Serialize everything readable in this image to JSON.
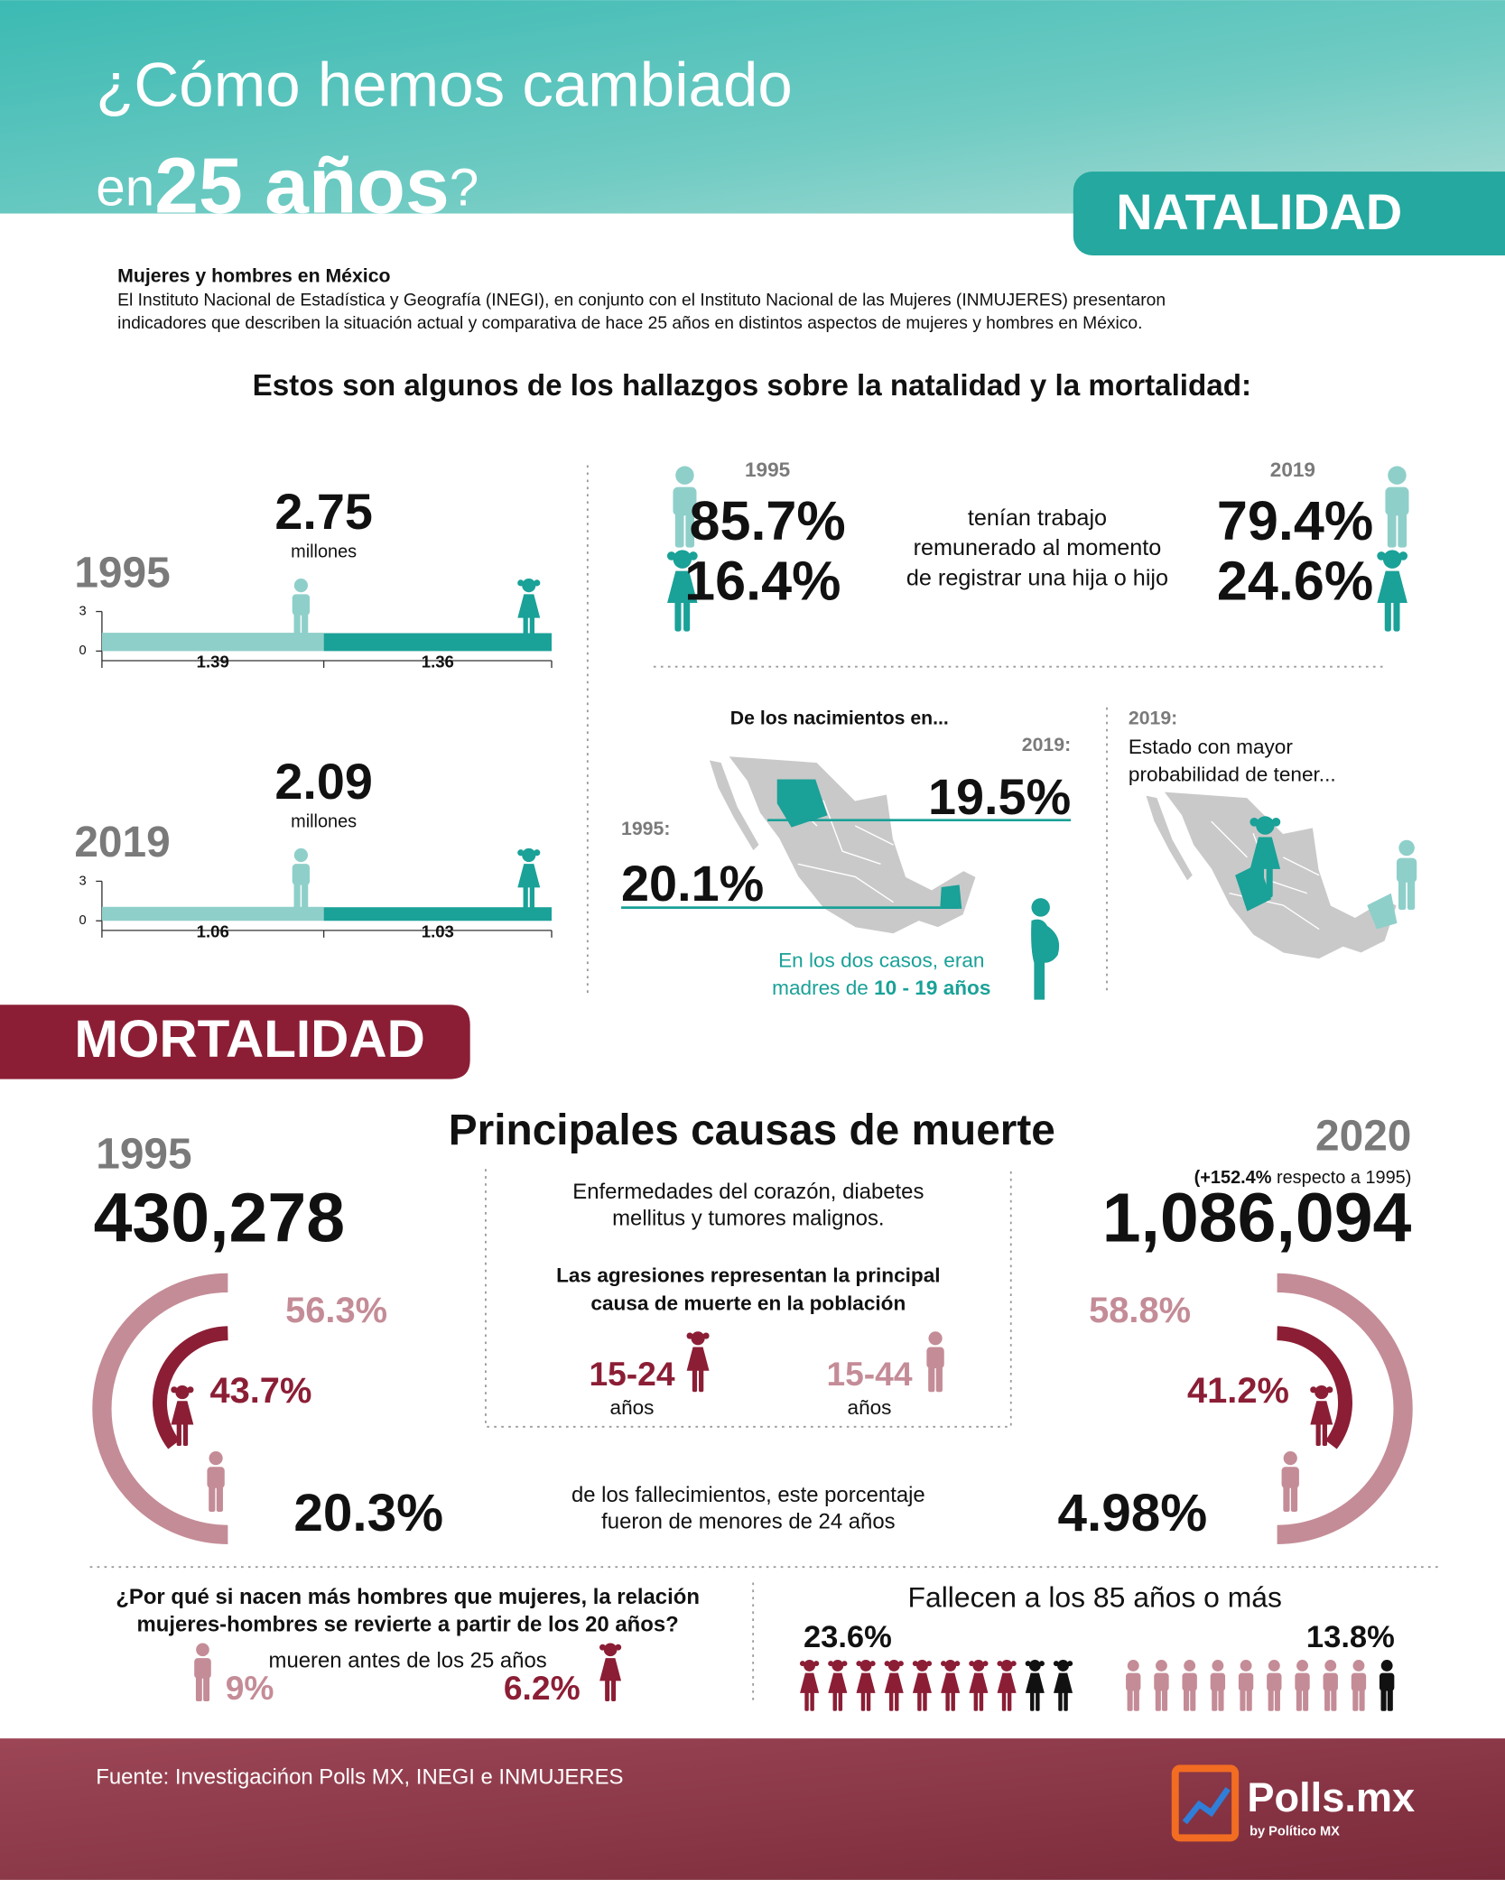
{
  "header": {
    "title": "¿Cómo hemos cambiado",
    "title_en": "en",
    "title_years": "25 años",
    "title_q": "?",
    "section": "NATALIDAD"
  },
  "intro": {
    "heading": "Mujeres y hombres en México",
    "body": [
      "El Instituto Nacional de Estadística y Geografía (INEGI), en conjunto con el Instituto Nacional de las Mujeres (INMUJERES) presentaron",
      "indicadores que describen la situación actual y comparativa de hace 25 años en distintos aspectos de mujeres y hombres en México."
    ],
    "findings": "Estos son algunos de los hallazgos sobre la natalidad y la mortalidad:"
  },
  "births": {
    "unit": "millones",
    "ylim": [
      0,
      3
    ],
    "yticks": [
      0,
      3
    ],
    "years": [
      {
        "year": "1995",
        "total": 2.75,
        "values": [
          1.39,
          1.36
        ]
      },
      {
        "year": "2019",
        "total": 2.09,
        "values": [
          1.06,
          1.03
        ]
      }
    ]
  },
  "work": {
    "year_a": "1995",
    "year_b": "2019",
    "men_a": "85.7%",
    "women_a": "16.4%",
    "men_b": "79.4%",
    "women_b": "24.6%",
    "text": [
      "tenían trabajo",
      "remunerado al momento",
      "de registrar una hija o hijo"
    ]
  },
  "teen_births": {
    "title": "De los nacimientos en...",
    "label_b": "2019:",
    "value_b": "19.5%",
    "label_a": "1995:",
    "value_a": "20.1%",
    "note": [
      "En los dos casos, eran",
      "madres de "
    ],
    "note_bold": "10 - 19 años"
  },
  "state": {
    "label": "2019:",
    "text": [
      "Estado con mayor",
      "probabilidad de tener..."
    ]
  },
  "mortality": {
    "section": "MORTALIDAD",
    "title": "Principales causas de muerte",
    "year_a": "1995",
    "deaths_a": "430,278",
    "year_b": "2020",
    "change": "(+152.4%",
    "change_text": " respecto a 1995)",
    "deaths_b": "1,086,094",
    "causes": [
      "Enfermedades del corazón, diabetes",
      "mellitus y tumores malignos."
    ],
    "aggr": [
      "Las agresiones representan la principal",
      "causa de muerte en la población"
    ],
    "ages": [
      {
        "range": "15-24",
        "unit": "años"
      },
      {
        "range": "15-44",
        "unit": "años"
      }
    ],
    "men_a": "56.3%",
    "women_a": "43.7%",
    "minors_a": "20.3%",
    "men_b": "58.8%",
    "women_b": "41.2%",
    "minors_b": "4.98%",
    "minors_text": [
      "de los fallecimientos, este porcentaje",
      "fueron de menores de 24 años"
    ]
  },
  "gender_gap": {
    "question": [
      "¿Por qué si nacen más hombres que mujeres, la relación",
      "mujeres-hombres se revierte a partir de los 20 años?"
    ],
    "text": "mueren antes de los 25 años",
    "men": "9%",
    "women": "6.2%"
  },
  "elderly": {
    "title": "Fallecen a los 85 años o más",
    "women": "23.6%",
    "men": "13.8%"
  },
  "footer": {
    "source": "Fuente: Investigacińon Polls MX, INEGI e INMUJERES",
    "logo": "Polls.mx",
    "logo_sub": "by Político MX"
  }
}
